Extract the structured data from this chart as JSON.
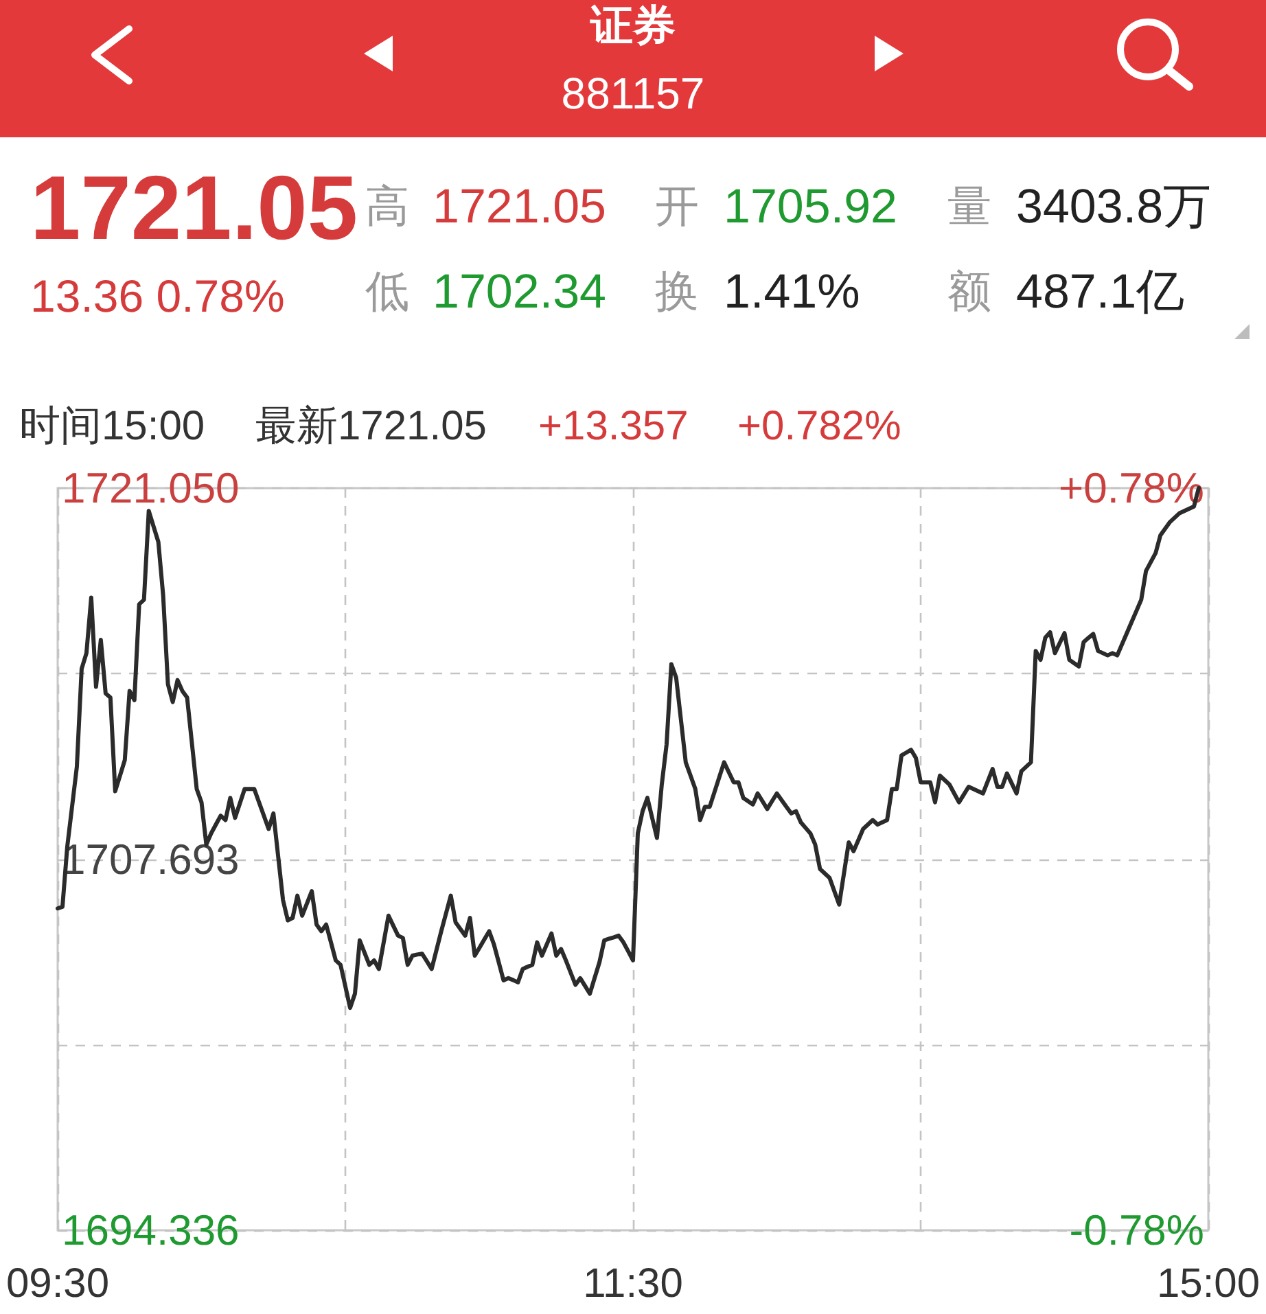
{
  "chart_data": {
    "type": "line",
    "title": "证券",
    "subtitle": "881157",
    "annotations": [
      "1721.05",
      "13.36 0.78%",
      "高",
      "1721.05",
      "开",
      "1705.92",
      "量",
      "3403.8万",
      "低",
      "1702.34",
      "换",
      "1.41%",
      "额",
      "487.1亿",
      "时间15:00",
      "最新1721.05",
      "+13.357",
      "+0.782%"
    ],
    "categories": [
      "09:30",
      null,
      null,
      null,
      null,
      null,
      null,
      null,
      null,
      null,
      null,
      null,
      null,
      null,
      null,
      null,
      null,
      null,
      null,
      null,
      null,
      null,
      null,
      null,
      null,
      null,
      null,
      null,
      null,
      null,
      null,
      null,
      null,
      null,
      null,
      null,
      null,
      null,
      null,
      null,
      null,
      null,
      null,
      null,
      null,
      null,
      null,
      null,
      null,
      null,
      null,
      null,
      null,
      null,
      null,
      null,
      null,
      null,
      null,
      null,
      null,
      null,
      null,
      null,
      null,
      null,
      null,
      null,
      null,
      null,
      null,
      null,
      null,
      null,
      null,
      null,
      null,
      null,
      null,
      null,
      null,
      null,
      null,
      null,
      null,
      null,
      null,
      null,
      null,
      null,
      null,
      null,
      null,
      null,
      null,
      null,
      null,
      null,
      null,
      null,
      null,
      null,
      null,
      null,
      null,
      null,
      null,
      null,
      null,
      null,
      null,
      null,
      null,
      null,
      null,
      null,
      null,
      null,
      null,
      null,
      "11:30",
      null,
      null,
      null,
      null,
      null,
      null,
      null,
      null,
      null,
      null,
      null,
      null,
      null,
      null,
      null,
      null,
      null,
      null,
      null,
      null,
      null,
      null,
      null,
      null,
      null,
      null,
      null,
      null,
      null,
      null,
      null,
      null,
      null,
      null,
      null,
      null,
      null,
      null,
      null,
      null,
      null,
      null,
      null,
      null,
      null,
      null,
      null,
      null,
      null,
      null,
      null,
      null,
      null,
      null,
      null,
      null,
      null,
      null,
      null,
      null,
      null,
      null,
      null,
      null,
      null,
      null,
      null,
      null,
      null,
      null,
      null,
      null,
      null,
      null,
      null,
      null,
      null,
      null,
      null,
      null,
      null,
      null,
      null,
      null,
      null,
      null,
      null,
      null,
      null,
      null,
      null,
      null,
      null,
      null,
      null,
      null,
      null,
      null,
      null,
      null,
      null,
      null,
      null,
      null,
      null,
      null,
      null,
      null,
      null,
      null,
      null,
      null,
      null,
      null,
      null,
      null,
      null,
      null,
      null,
      "15:00"
    ],
    "values": [
      1705.92,
      1705.98,
      1708.14,
      1709.58,
      1711.02,
      1714.55,
      1715.11,
      1717.11,
      1713.9,
      1715.59,
      1713.66,
      1713.51,
      1710.14,
      1710.7,
      1711.26,
      1713.75,
      1713.42,
      1716.87,
      1717.03,
      1720.23,
      1719.67,
      1719.11,
      1717.19,
      1713.99,
      1713.35,
      1714.14,
      1713.75,
      1713.51,
      1711.87,
      1710.22,
      1709.74,
      1708.22,
      1708.62,
      1708.94,
      1709.26,
      1709.1,
      1709.9,
      1709.18,
      1709.7,
      1710.22,
      1710.22,
      1710.22,
      1709.74,
      1709.26,
      1708.78,
      1709.34,
      1707.78,
      1706.22,
      1705.49,
      1705.58,
      1706.38,
      1705.66,
      1706.1,
      1706.54,
      1705.34,
      1705.1,
      1705.34,
      1704.7,
      1704.05,
      1703.89,
      1703.12,
      1702.34,
      1702.85,
      1704.77,
      1704.33,
      1703.89,
      1704.05,
      1703.74,
      1704.7,
      1705.66,
      1705.3,
      1704.94,
      1704.86,
      1703.89,
      1704.22,
      1704.26,
      1704.29,
      1704.02,
      1703.74,
      1704.42,
      1705.1,
      1705.74,
      1706.38,
      1705.42,
      1705.18,
      1704.94,
      1705.58,
      1704.22,
      1704.51,
      1704.81,
      1705.1,
      1704.62,
      1703.98,
      1703.33,
      1703.41,
      1703.34,
      1703.26,
      1703.74,
      1703.82,
      1703.89,
      1704.7,
      1704.22,
      1704.62,
      1705.02,
      1704.22,
      1704.46,
      1704.05,
      1703.61,
      1703.17,
      1703.41,
      1703.13,
      1702.85,
      1703.42,
      1703.98,
      1704.77,
      1704.83,
      1704.88,
      1704.94,
      1704.7,
      1704.38,
      1704.05,
      1708.62,
      1709.42,
      1709.9,
      1709.18,
      1708.46,
      1710.38,
      1711.82,
      1714.71,
      1714.23,
      1712.71,
      1711.18,
      1710.7,
      1710.22,
      1709.1,
      1709.58,
      1709.58,
      1710.11,
      1710.65,
      1711.18,
      1710.82,
      1710.46,
      1710.46,
      1709.9,
      1709.78,
      1709.66,
      1710.06,
      1709.78,
      1709.5,
      1709.78,
      1710.06,
      1709.82,
      1709.58,
      1709.34,
      1709.42,
      1709.02,
      1708.82,
      1708.62,
      1708.22,
      1707.34,
      1707.18,
      1707.02,
      1706.54,
      1706.06,
      1707.18,
      1708.3,
      1707.98,
      1708.38,
      1708.78,
      1708.94,
      1709.1,
      1708.94,
      1709.02,
      1709.1,
      1710.22,
      1710.22,
      1711.43,
      1711.53,
      1711.63,
      1711.34,
      1710.46,
      1710.46,
      1710.46,
      1709.74,
      1710.7,
      1710.54,
      1710.38,
      1710.06,
      1709.74,
      1710.02,
      1710.3,
      1710.22,
      1710.14,
      1710.06,
      1710.5,
      1710.94,
      1710.3,
      1710.3,
      1710.78,
      1710.42,
      1710.06,
      1710.86,
      1711.02,
      1711.18,
      1715.19,
      1714.87,
      1715.67,
      1715.86,
      1715.11,
      1715.47,
      1715.83,
      1714.87,
      1714.75,
      1714.63,
      1715.51,
      1715.66,
      1715.8,
      1715.19,
      1715.11,
      1715.03,
      1715.11,
      1715.03,
      1715.43,
      1715.83,
      1716.23,
      1716.63,
      1717.03,
      1718.07,
      1718.39,
      1718.71,
      1719.35,
      1719.59,
      1719.83,
      1719.99,
      1720.15,
      1720.23,
      1720.31,
      1720.39,
      1721.05,
      null,
      null
    ],
    "color": "#2b2b2b",
    "ylim": [
      1694.336,
      1721.05
    ],
    "yticks": [
      1694.336,
      1707.693,
      {
        "value": 1721.05,
        "label": "1721.050"
      }
    ],
    "y2lim": [
      -0.782,
      0.782
    ],
    "y2ticks": [
      {
        "value": -0.782,
        "label": "-0.78%"
      },
      {
        "value": 0.782,
        "label": "+0.78%"
      }
    ],
    "grid": true,
    "marker": "none"
  }
}
